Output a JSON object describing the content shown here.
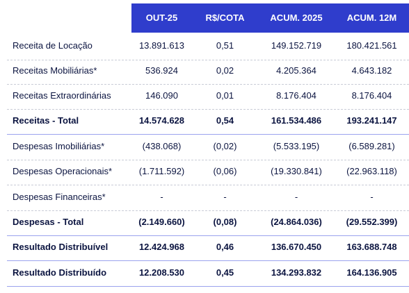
{
  "header": {
    "columns": [
      "OUT-25",
      "R$/COTA",
      "ACUM. 2025",
      "ACUM. 12M"
    ]
  },
  "rows": [
    {
      "label": "Receita de Locação",
      "values": [
        "13.891.613",
        "0,51",
        "149.152.719",
        "180.421.561"
      ],
      "bold": false
    },
    {
      "label": "Receitas Mobiliárias*",
      "values": [
        "536.924",
        "0,02",
        "4.205.364",
        "4.643.182"
      ],
      "bold": false
    },
    {
      "label": "Receitas Extraordinárias",
      "values": [
        "146.090",
        "0,01",
        "8.176.404",
        "8.176.404"
      ],
      "bold": false
    },
    {
      "label": "Receitas - Total",
      "values": [
        "14.574.628",
        "0,54",
        "161.534.486",
        "193.241.147"
      ],
      "bold": true
    },
    {
      "label": "Despesas Imobiliárias*",
      "values": [
        "(438.068)",
        "(0,02)",
        "(5.533.195)",
        "(6.589.281)"
      ],
      "bold": false
    },
    {
      "label": "Despesas Operacionais*",
      "values": [
        "(1.711.592)",
        "(0,06)",
        "(19.330.841)",
        "(22.963.118)"
      ],
      "bold": false
    },
    {
      "label": "Despesas Financeiras*",
      "values": [
        "-",
        "-",
        "-",
        "-"
      ],
      "bold": false
    },
    {
      "label": "Despesas - Total",
      "values": [
        "(2.149.660)",
        "(0,08)",
        "(24.864.036)",
        "(29.552.399)"
      ],
      "bold": true
    },
    {
      "label": "Resultado Distribuível",
      "values": [
        "12.424.968",
        "0,46",
        "136.670.450",
        "163.688.748"
      ],
      "bold": true
    },
    {
      "label": "Resultado Distribuído",
      "values": [
        "12.208.530",
        "0,45",
        "134.293.832",
        "164.136.905"
      ],
      "bold": true
    }
  ],
  "colors": {
    "header_bg": "#2f3dcc",
    "text": "#0b1440"
  }
}
